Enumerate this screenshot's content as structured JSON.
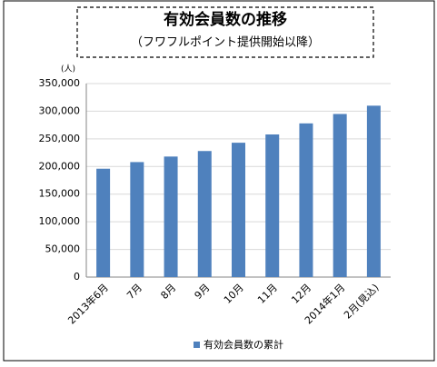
{
  "chart_data": {
    "type": "bar",
    "title": "有効会員数の推移",
    "subtitle": "（フワフルポイント提供開始以降）",
    "y_unit": "(人)",
    "categories": [
      "2013年6月",
      "7月",
      "8月",
      "9月",
      "10月",
      "11月",
      "12月",
      "2014年1月",
      "2月(見込)"
    ],
    "series": [
      {
        "name": "有効会員数の累計",
        "color": "#4f81bd",
        "values": [
          196000,
          208000,
          218000,
          228000,
          243000,
          258000,
          278000,
          295000,
          310000
        ]
      }
    ],
    "ylim": [
      0,
      350000
    ],
    "yticks": [
      0,
      {
        "value": 50000,
        "label": "50,000"
      },
      {
        "value": 100000,
        "label": "100,000"
      },
      {
        "value": 150000,
        "label": "150,000"
      },
      {
        "value": 200000,
        "label": "200,000"
      },
      {
        "value": 250000,
        "label": "250,000"
      },
      {
        "value": 300000,
        "label": "300,000"
      },
      {
        "value": 350000,
        "label": "350,000"
      }
    ],
    "grid": true
  }
}
